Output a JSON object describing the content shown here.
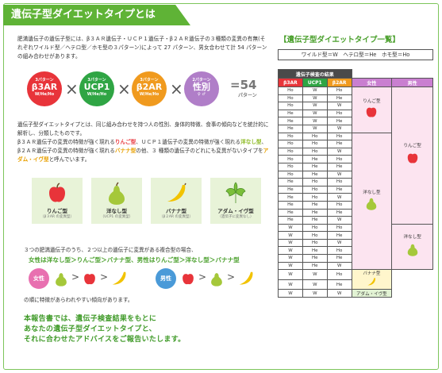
{
  "title": "遺伝子型ダイエットタイプとは",
  "intro": "肥満遺伝子の遺伝子型には、β３ＡＲ遺伝子・ＵＣＰ１遺伝子・β２ＡＲ遺伝子の３種類の変異の有無(それぞれワイルド型／ヘテロ型／ホモ型の３パターン)によって 27 パターン、男女合わせて計 54 パターンの組み合わせがあります。",
  "formula": {
    "items": [
      {
        "small": "3パターン",
        "name": "β3AR",
        "foot": "W/He/Ho",
        "color": "#e8343a"
      },
      {
        "small": "3パターン",
        "name": "UCP1",
        "foot": "W/He/Ho",
        "color": "#2fa544"
      },
      {
        "small": "3パターン",
        "name": "β2AR",
        "foot": "W/He/Ho",
        "color": "#f09a1e"
      },
      {
        "small": "2パターン",
        "name": "性別",
        "foot": "♀ ♂",
        "color": "#b07ec8"
      }
    ],
    "times": "×",
    "result": "=54",
    "result_unit": "パターン"
  },
  "desc": {
    "p1": "遺伝子型ダイエットタイプとは、同じ組み合わせを持つ人の性別、身体的特徴、食事の傾向などを統計的に解析し、分類したものです。",
    "p2a": "β３ＡＲ遺伝子の変異の特徴が強く現れる",
    "p2_apple": "りんご型",
    "p2b": "、ＵＣＰ１遺伝子の変異の特徴が強く現れる",
    "p2_pear": "洋なし型",
    "p2c": "、β２ＡＲ遺伝子の変異の特徴が強く現れる",
    "p2_banana": "バナナ型",
    "p2d": "の他、３ 種類の遺伝子のどれにも変異がないタイプを",
    "p2_adam": "アダム・イヴ型",
    "p2e": "と呼んでいます。"
  },
  "types": [
    {
      "name": "りんご型",
      "sub": "（β３AR の変異型）",
      "icon": "apple-icon"
    },
    {
      "name": "洋なし型",
      "sub": "（UCP1 の変異型）",
      "icon": "pear-icon"
    },
    {
      "name": "バナナ型",
      "sub": "（β２AR の変異型）",
      "icon": "banana-icon"
    },
    {
      "name": "アダム・イヴ型",
      "sub": "（遺伝子に変異なし）",
      "icon": "leaf-icon"
    }
  ],
  "three_genes": "３つの肥満遺伝子のうち、２つ以上の遺伝子に変異がある複合型の場合、",
  "priority": "女性は洋なし型＞りんご型＞バナナ型、男性はりんご型＞洋なし型＞バナナ型",
  "female_label": "女性",
  "male_label": "男性",
  "gt": ">",
  "tendency": "の順に特徴があらわれやすい傾向があります。",
  "report": [
    "本報告書では、遺伝子検査結果をもとに",
    "あなたの遺伝子型ダイエットタイプと、",
    "それに合わせたアドバイスをご報告いたします。"
  ],
  "table_title": "【遺伝子型ダイエットタイプ一覧】",
  "legend": "ワイルド型＝W　ヘテロ型＝He　ホモ型＝Ho",
  "table": {
    "header_group": "遺伝子検査の結果",
    "columns": [
      "β3AR",
      "UCP1",
      "β2AR",
      "女性",
      "男性"
    ],
    "rows": [
      [
        "Ho",
        "W",
        "Ho"
      ],
      [
        "Ho",
        "W",
        "He"
      ],
      [
        "Ho",
        "W",
        "W"
      ],
      [
        "He",
        "W",
        "Ho"
      ],
      [
        "He",
        "W",
        "He"
      ],
      [
        "He",
        "W",
        "W"
      ],
      [
        "Ho",
        "Ho",
        "Ho"
      ],
      [
        "Ho",
        "Ho",
        "He"
      ],
      [
        "Ho",
        "Ho",
        "W"
      ],
      [
        "Ho",
        "He",
        "Ho"
      ],
      [
        "Ho",
        "He",
        "He"
      ],
      [
        "Ho",
        "He",
        "W"
      ],
      [
        "He",
        "Ho",
        "Ho"
      ],
      [
        "He",
        "Ho",
        "He"
      ],
      [
        "He",
        "Ho",
        "W"
      ],
      [
        "He",
        "He",
        "Ho"
      ],
      [
        "He",
        "He",
        "He"
      ],
      [
        "He",
        "He",
        "W"
      ],
      [
        "W",
        "Ho",
        "Ho"
      ],
      [
        "W",
        "Ho",
        "He"
      ],
      [
        "W",
        "Ho",
        "W"
      ],
      [
        "W",
        "He",
        "Ho"
      ],
      [
        "W",
        "He",
        "He"
      ],
      [
        "W",
        "He",
        "W"
      ],
      [
        "W",
        "W",
        "Ho"
      ],
      [
        "W",
        "W",
        "He"
      ],
      [
        "W",
        "W",
        "W"
      ]
    ],
    "female_types": [
      {
        "label": "りんご型",
        "rows": 6
      },
      {
        "label": "洋なし型",
        "rows": 18
      },
      {
        "label": "バナナ型",
        "rows": 2
      },
      {
        "label": "アダム・イヴ型",
        "rows": 1
      }
    ],
    "male_types": [
      {
        "label": "りんご型",
        "rows": 18
      },
      {
        "label": "洋なし型",
        "rows": 6
      }
    ]
  }
}
